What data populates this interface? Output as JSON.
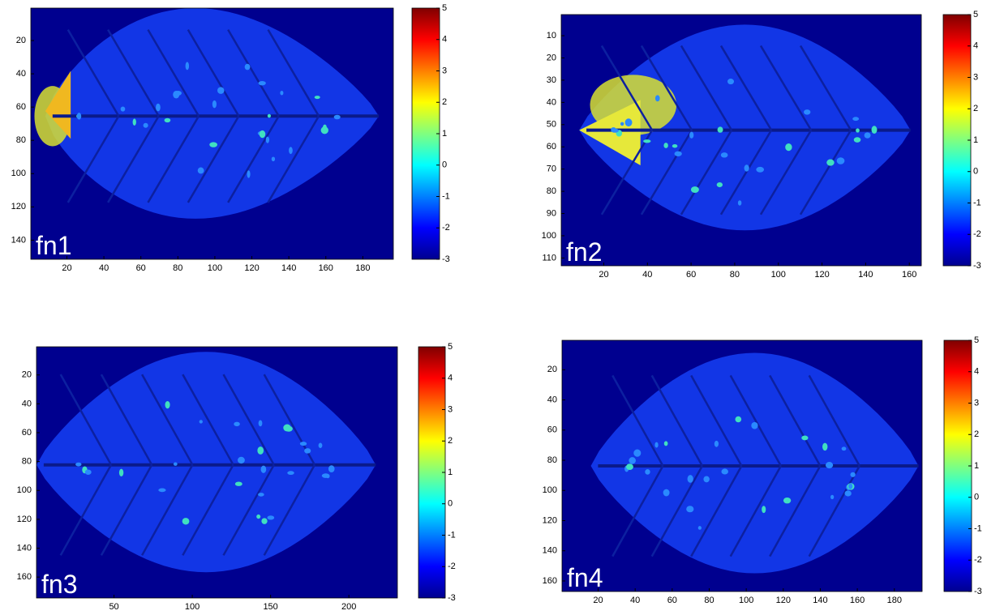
{
  "chart_data": [
    {
      "type": "heatmap",
      "label": "fn1",
      "colormap": "jet",
      "y_reversed": true,
      "xlim": [
        0.5,
        196.5
      ],
      "xticks": [
        20,
        40,
        60,
        80,
        100,
        120,
        140,
        160,
        180
      ],
      "ylim": [
        0.5,
        151.5
      ],
      "yticks": [
        20,
        40,
        60,
        80,
        100,
        120,
        140
      ],
      "clim": [
        -3,
        5
      ],
      "cticks": [
        -3,
        -2,
        -1,
        0,
        1,
        2,
        3,
        4,
        5
      ]
    },
    {
      "type": "heatmap",
      "label": "fn2",
      "colormap": "jet",
      "y_reversed": true,
      "xlim": [
        0.5,
        165.5
      ],
      "xticks": [
        20,
        40,
        60,
        80,
        100,
        120,
        140,
        160
      ],
      "ylim": [
        0.5,
        113.5
      ],
      "yticks": [
        10,
        20,
        30,
        40,
        50,
        60,
        70,
        80,
        90,
        100,
        110
      ],
      "clim": [
        -3,
        5
      ],
      "cticks": [
        -3,
        -2,
        -1,
        0,
        1,
        2,
        3,
        4,
        5
      ]
    },
    {
      "type": "heatmap",
      "label": "fn3",
      "colormap": "jet",
      "y_reversed": true,
      "xlim": [
        0.5,
        231
      ],
      "xticks": [
        50,
        100,
        150,
        200
      ],
      "ylim": [
        0.5,
        174.5
      ],
      "yticks": [
        20,
        40,
        60,
        80,
        100,
        120,
        140,
        160
      ],
      "clim": [
        -3,
        5
      ],
      "cticks": [
        -3,
        -2,
        -1,
        0,
        1,
        2,
        3,
        4,
        5
      ]
    },
    {
      "type": "heatmap",
      "label": "fn4",
      "colormap": "jet",
      "y_reversed": true,
      "xlim": [
        0.5,
        195
      ],
      "xticks": [
        20,
        40,
        60,
        80,
        100,
        120,
        140,
        160,
        180
      ],
      "ylim": [
        0.5,
        167
      ],
      "yticks": [
        20,
        40,
        60,
        80,
        100,
        120,
        140,
        160
      ],
      "clim": [
        -3,
        5
      ],
      "cticks": [
        -3,
        -2,
        -1,
        0,
        1,
        2,
        3,
        4,
        5
      ]
    }
  ]
}
